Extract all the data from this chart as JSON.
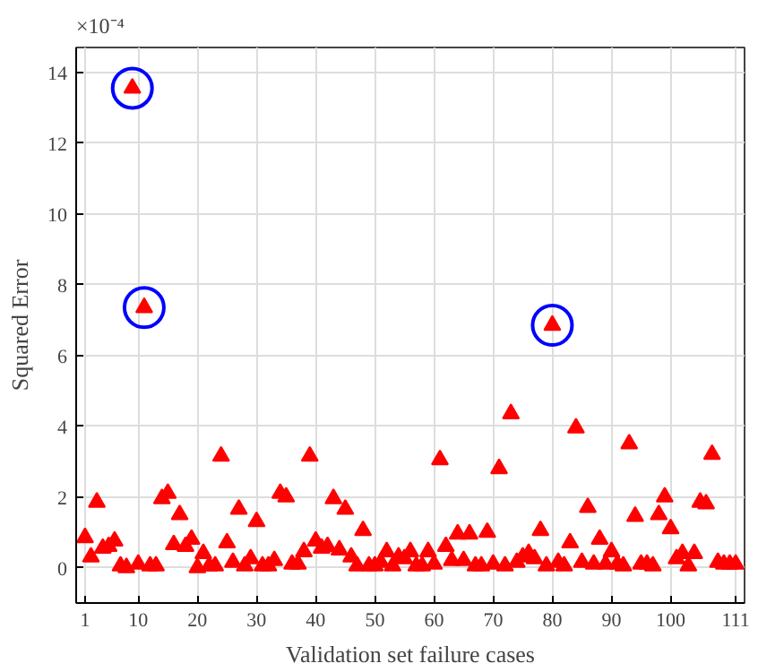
{
  "chart_data": {
    "type": "scatter",
    "xlabel": "Validation set failure cases",
    "ylabel": "Squared Error",
    "annotations": [
      "×10⁻⁴"
    ],
    "x": [
      1,
      2,
      3,
      4,
      5,
      6,
      7,
      8,
      9,
      10,
      11,
      12,
      13,
      14,
      15,
      16,
      17,
      18,
      19,
      20,
      21,
      22,
      23,
      24,
      25,
      26,
      27,
      28,
      29,
      30,
      31,
      32,
      33,
      34,
      35,
      36,
      37,
      38,
      39,
      40,
      41,
      42,
      43,
      44,
      45,
      46,
      47,
      48,
      49,
      50,
      51,
      52,
      53,
      54,
      55,
      56,
      57,
      58,
      59,
      60,
      61,
      62,
      63,
      64,
      65,
      66,
      67,
      68,
      69,
      70,
      71,
      72,
      73,
      74,
      75,
      76,
      77,
      78,
      79,
      80,
      81,
      82,
      83,
      84,
      85,
      86,
      87,
      88,
      89,
      90,
      91,
      92,
      93,
      94,
      95,
      96,
      97,
      98,
      99,
      100,
      101,
      102,
      103,
      104,
      105,
      106,
      107,
      108,
      109,
      110,
      111
    ],
    "series": [
      {
        "color": "#ff0000",
        "marker": "triangle",
        "values": [
          0.85,
          0.3,
          1.85,
          0.55,
          0.6,
          0.75,
          0.05,
          0.0,
          13.55,
          0.1,
          7.35,
          0.05,
          0.05,
          1.95,
          2.1,
          0.65,
          1.5,
          0.6,
          0.8,
          0.0,
          0.4,
          0.05,
          0.05,
          3.15,
          0.7,
          0.15,
          1.65,
          0.05,
          0.25,
          1.3,
          0.05,
          0.05,
          0.2,
          2.1,
          2.0,
          0.1,
          0.1,
          0.45,
          3.15,
          0.75,
          0.55,
          0.6,
          1.95,
          0.5,
          1.65,
          0.3,
          0.05,
          1.05,
          0.05,
          0.05,
          0.15,
          0.45,
          0.05,
          0.3,
          0.25,
          0.45,
          0.05,
          0.05,
          0.45,
          0.1,
          3.05,
          0.6,
          0.2,
          0.95,
          0.2,
          0.95,
          0.05,
          0.05,
          1.0,
          0.1,
          2.8,
          0.05,
          4.35,
          0.15,
          0.3,
          0.4,
          0.25,
          1.05,
          0.05,
          6.85,
          0.15,
          0.05,
          0.7,
          3.95,
          0.15,
          1.7,
          0.1,
          0.8,
          0.1,
          0.45,
          0.1,
          0.05,
          3.5,
          1.45,
          0.1,
          0.1,
          0.05,
          1.5,
          2.0,
          1.1,
          0.25,
          0.4,
          0.05,
          0.4,
          1.85,
          1.8,
          3.2,
          0.15,
          0.1,
          0.1,
          0.1
        ]
      },
      {
        "color": "#0000ff",
        "marker": "circle",
        "x": [
          9,
          11,
          80
        ],
        "values": [
          13.55,
          7.35,
          6.85
        ]
      }
    ],
    "xlim": [
      -0.5,
      112.5
    ],
    "ylim": [
      -1,
      14.7
    ],
    "xticks": [
      1,
      10,
      20,
      30,
      40,
      50,
      60,
      70,
      80,
      90,
      100,
      111
    ],
    "yticks": [
      0,
      2,
      4,
      6,
      8,
      10,
      12,
      14
    ],
    "grid": true
  }
}
